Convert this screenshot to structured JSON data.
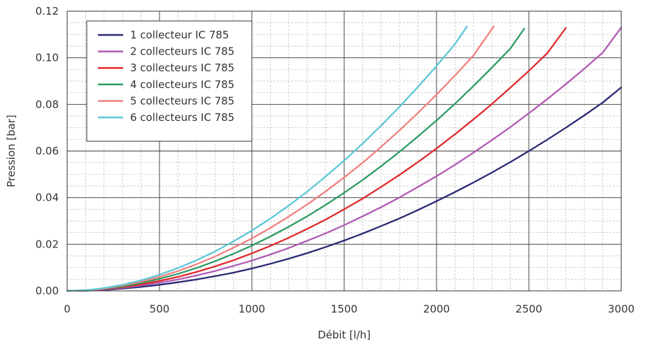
{
  "chart_data": {
    "type": "line",
    "title": "",
    "xlabel": "Débit [l/h]",
    "ylabel": "Pression [bar]",
    "xlim": [
      0,
      3000
    ],
    "ylim": [
      0,
      0.12
    ],
    "x_ticks": [
      "0",
      "500",
      "1000",
      "1500",
      "2000",
      "2500",
      "3000"
    ],
    "y_ticks": [
      "0.00",
      "0.02",
      "0.04",
      "0.06",
      "0.08",
      "0.10",
      "0.12"
    ],
    "grid": true,
    "legend_position": "top-left",
    "series": [
      {
        "name": "1 collecteur IC 785",
        "color": "#2a2a74",
        "x": [
          0,
          100,
          200,
          300,
          400,
          500,
          600,
          700,
          800,
          900,
          1000,
          1100,
          1200,
          1300,
          1400,
          1500,
          1600,
          1700,
          1800,
          1900,
          2000,
          2100,
          2200,
          2300,
          2400,
          2500,
          2600,
          2700,
          2800,
          2900,
          3000
        ],
        "y": [
          0,
          0.0001,
          0.0004,
          0.001,
          0.0017,
          0.0026,
          0.0037,
          0.0049,
          0.0063,
          0.0078,
          0.0096,
          0.0116,
          0.0138,
          0.0162,
          0.0188,
          0.0216,
          0.0246,
          0.0278,
          0.0311,
          0.0347,
          0.0385,
          0.0424,
          0.0465,
          0.0508,
          0.0553,
          0.06,
          0.0649,
          0.07,
          0.0753,
          0.0808,
          0.0873
        ]
      },
      {
        "name": "2 collecteurs IC 785",
        "color": "#b05ab5",
        "x": [
          0,
          100,
          200,
          300,
          400,
          500,
          600,
          700,
          800,
          900,
          1000,
          1100,
          1200,
          1300,
          1400,
          1500,
          1600,
          1700,
          1800,
          1900,
          2000,
          2100,
          2200,
          2300,
          2400,
          2500,
          2600,
          2700,
          2800,
          2900,
          3000
        ],
        "y": [
          0,
          0.0002,
          0.0006,
          0.0013,
          0.0023,
          0.0035,
          0.0049,
          0.0066,
          0.0085,
          0.0107,
          0.013,
          0.0156,
          0.0184,
          0.0215,
          0.0247,
          0.0282,
          0.032,
          0.0359,
          0.0401,
          0.0446,
          0.0492,
          0.0541,
          0.0593,
          0.0647,
          0.0703,
          0.0762,
          0.0823,
          0.0887,
          0.0953,
          0.1022,
          0.113
        ]
      },
      {
        "name": "3 collecteurs IC 785",
        "color": "#e0282a",
        "x": [
          0,
          100,
          200,
          300,
          400,
          500,
          600,
          700,
          800,
          900,
          1000,
          1100,
          1200,
          1300,
          1400,
          1500,
          1600,
          1700,
          1800,
          1900,
          2000,
          2100,
          2200,
          2300,
          2400,
          2500,
          2600,
          2700
        ],
        "y": [
          0,
          0.0002,
          0.0008,
          0.0016,
          0.0028,
          0.0043,
          0.006,
          0.0081,
          0.0105,
          0.0131,
          0.0161,
          0.0193,
          0.0228,
          0.0266,
          0.0306,
          0.035,
          0.0396,
          0.0446,
          0.0498,
          0.0553,
          0.0611,
          0.0672,
          0.0736,
          0.0802,
          0.0872,
          0.0944,
          0.102,
          0.1128
        ]
      },
      {
        "name": "4 collecteurs IC 785",
        "color": "#2e9b63",
        "x": [
          0,
          100,
          200,
          300,
          400,
          500,
          600,
          700,
          800,
          900,
          1000,
          1100,
          1200,
          1300,
          1400,
          1500,
          1600,
          1700,
          1800,
          1900,
          2000,
          2100,
          2200,
          2300,
          2400,
          2475
        ],
        "y": [
          0,
          0.0002,
          0.0009,
          0.0019,
          0.0034,
          0.0052,
          0.0073,
          0.0098,
          0.0127,
          0.0159,
          0.0194,
          0.0233,
          0.0275,
          0.032,
          0.0369,
          0.0421,
          0.0476,
          0.0535,
          0.0597,
          0.0663,
          0.0731,
          0.0803,
          0.0879,
          0.0958,
          0.104,
          0.1125
        ]
      },
      {
        "name": "5 collecteurs IC 785",
        "color": "#f08080",
        "x": [
          0,
          100,
          200,
          300,
          400,
          500,
          600,
          700,
          800,
          900,
          1000,
          1100,
          1200,
          1300,
          1400,
          1500,
          1600,
          1700,
          1800,
          1900,
          2000,
          2100,
          2200,
          2310
        ],
        "y": [
          0,
          0.0002,
          0.001,
          0.0023,
          0.0039,
          0.006,
          0.0085,
          0.0114,
          0.0147,
          0.0185,
          0.0225,
          0.027,
          0.0319,
          0.0371,
          0.0427,
          0.0487,
          0.055,
          0.0618,
          0.0689,
          0.0764,
          0.0842,
          0.0924,
          0.101,
          0.1135
        ]
      },
      {
        "name": "6 collecteurs IC 785",
        "color": "#5cc8d6",
        "x": [
          0,
          100,
          200,
          300,
          400,
          500,
          600,
          700,
          800,
          900,
          1000,
          1100,
          1200,
          1300,
          1400,
          1500,
          1600,
          1700,
          1800,
          1900,
          2000,
          2100,
          2165
        ],
        "y": [
          0,
          0.0003,
          0.0012,
          0.0026,
          0.0045,
          0.0069,
          0.0098,
          0.0131,
          0.0169,
          0.0212,
          0.0259,
          0.031,
          0.0366,
          0.0426,
          0.0491,
          0.0559,
          0.0632,
          0.0709,
          0.079,
          0.0876,
          0.0965,
          0.1059,
          0.1135
        ]
      }
    ]
  }
}
